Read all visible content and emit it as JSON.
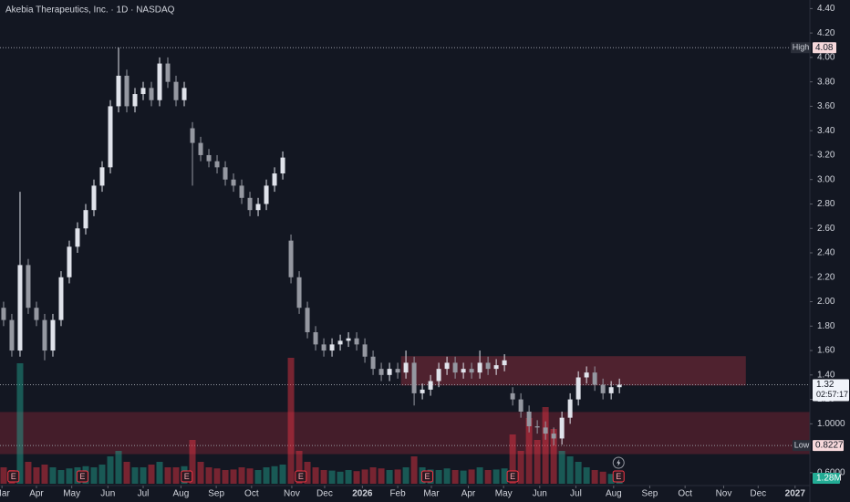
{
  "chart_data": {
    "type": "candlestick",
    "title": "Akebia Therapeutics, Inc. · 1D · NASDAQ",
    "xlim": [
      -0.44,
      98.2
    ],
    "ylim": [
      0.36,
      4.47
    ],
    "xticks": [
      {
        "value": -0.2,
        "label": "Mar"
      },
      {
        "value": 4,
        "label": "Apr"
      },
      {
        "value": 8.3,
        "label": "May"
      },
      {
        "value": 12.7,
        "label": "Jun"
      },
      {
        "value": 17,
        "label": "Jul"
      },
      {
        "value": 21.6,
        "label": "Aug"
      },
      {
        "value": 25.9,
        "label": "Sep"
      },
      {
        "value": 30.2,
        "label": "Oct"
      },
      {
        "value": 35.1,
        "label": "Nov"
      },
      {
        "value": 39.1,
        "label": "Dec"
      },
      {
        "value": 43.7,
        "label": "2026",
        "bold": true
      },
      {
        "value": 48,
        "label": "Feb"
      },
      {
        "value": 52.1,
        "label": "Mar"
      },
      {
        "value": 56.6,
        "label": "Apr"
      },
      {
        "value": 60.9,
        "label": "May"
      },
      {
        "value": 65.3,
        "label": "Jun"
      },
      {
        "value": 69.7,
        "label": "Jul"
      },
      {
        "value": 74.3,
        "label": "Aug"
      },
      {
        "value": 78.7,
        "label": "Sep"
      },
      {
        "value": 83,
        "label": "Oct"
      },
      {
        "value": 87.7,
        "label": "Nov"
      },
      {
        "value": 91.9,
        "label": "Dec"
      },
      {
        "value": 96.4,
        "label": "2027",
        "bold": true
      }
    ],
    "yticks": [
      {
        "value": 4.4,
        "label": "4.40"
      },
      {
        "value": 4.2,
        "label": "4.20"
      },
      {
        "value": 4,
        "label": "4.00"
      },
      {
        "value": 3.8,
        "label": "3.80"
      },
      {
        "value": 3.6,
        "label": "3.60"
      },
      {
        "value": 3.4,
        "label": "3.40"
      },
      {
        "value": 3.2,
        "label": "3.20"
      },
      {
        "value": 3,
        "label": "3.00"
      },
      {
        "value": 2.8,
        "label": "2.80"
      },
      {
        "value": 2.6,
        "label": "2.60"
      },
      {
        "value": 2.4,
        "label": "2.40"
      },
      {
        "value": 2.2,
        "label": "2.20"
      },
      {
        "value": 2,
        "label": "2.00"
      },
      {
        "value": 1.8,
        "label": "1.80"
      },
      {
        "value": 1.6,
        "label": "1.60"
      },
      {
        "value": 1.4,
        "label": "1.40"
      },
      {
        "value": 1.2,
        "label": "1.20"
      },
      {
        "value": 1,
        "label": "1.0000"
      },
      {
        "value": 0.6,
        "label": "0.6000"
      }
    ],
    "open": [
      1.95,
      1.85,
      1.6,
      2.3,
      1.95,
      1.85,
      1.6,
      1.85,
      2.2,
      2.45,
      2.6,
      2.75,
      2.95,
      3.1,
      3.6,
      3.85,
      3.6,
      3.7,
      3.75,
      3.65,
      3.95,
      3.8,
      3.65,
      3.42,
      3.3,
      3.2,
      3.15,
      3.1,
      3.0,
      2.95,
      2.85,
      2.75,
      2.8,
      2.95,
      3.05,
      2.5,
      2.2,
      1.95,
      1.75,
      1.65,
      1.6,
      1.65,
      1.68,
      1.7,
      1.65,
      1.55,
      1.45,
      1.4,
      1.45,
      1.42,
      1.5,
      1.25,
      1.28,
      1.35,
      1.45,
      1.5,
      1.42,
      1.45,
      1.42,
      1.5,
      1.45,
      1.48,
      1.25,
      1.2,
      1.1,
      0.98,
      0.97,
      0.92,
      0.88,
      1.05,
      1.2,
      1.38,
      1.42,
      1.32,
      1.25,
      1.3
    ],
    "high": [
      2.0,
      1.9,
      2.9,
      2.35,
      2.0,
      1.9,
      1.9,
      2.25,
      2.5,
      2.65,
      2.8,
      3.0,
      3.15,
      3.65,
      4.08,
      3.9,
      3.75,
      3.8,
      3.8,
      4.0,
      4.0,
      3.85,
      3.8,
      3.47,
      3.35,
      3.25,
      3.2,
      3.15,
      3.05,
      3.0,
      2.9,
      2.85,
      3.0,
      3.1,
      3.23,
      2.55,
      2.25,
      2.0,
      1.8,
      1.7,
      1.7,
      1.73,
      1.75,
      1.75,
      1.7,
      1.6,
      1.5,
      1.5,
      1.5,
      1.6,
      1.55,
      1.33,
      1.4,
      1.5,
      1.55,
      1.55,
      1.5,
      1.5,
      1.6,
      1.55,
      1.53,
      1.57,
      1.3,
      1.25,
      1.15,
      1.03,
      1.02,
      0.97,
      1.1,
      1.25,
      1.43,
      1.47,
      1.47,
      1.37,
      1.35,
      1.37
    ],
    "low": [
      1.8,
      1.55,
      1.55,
      1.9,
      1.8,
      1.52,
      1.55,
      1.8,
      2.15,
      2.4,
      2.55,
      2.7,
      2.9,
      3.05,
      3.55,
      3.55,
      3.55,
      3.65,
      3.6,
      3.6,
      3.75,
      3.6,
      3.6,
      2.95,
      3.15,
      3.1,
      3.05,
      2.95,
      2.9,
      2.8,
      2.7,
      2.7,
      2.75,
      2.9,
      3.0,
      2.15,
      1.9,
      1.7,
      1.6,
      1.55,
      1.55,
      1.6,
      1.63,
      1.6,
      1.5,
      1.4,
      1.35,
      1.35,
      1.37,
      1.37,
      1.15,
      1.2,
      1.23,
      1.3,
      1.4,
      1.37,
      1.37,
      1.37,
      1.37,
      1.4,
      1.4,
      1.43,
      1.15,
      1.05,
      0.93,
      0.92,
      0.87,
      0.8227,
      0.83,
      1.0,
      1.15,
      1.33,
      1.27,
      1.2,
      1.2,
      1.25
    ],
    "close": [
      1.85,
      1.6,
      2.3,
      1.95,
      1.85,
      1.6,
      1.85,
      2.2,
      2.45,
      2.6,
      2.75,
      2.95,
      3.1,
      3.6,
      3.85,
      3.6,
      3.7,
      3.75,
      3.65,
      3.95,
      3.8,
      3.65,
      3.75,
      3.3,
      3.2,
      3.15,
      3.1,
      3.0,
      2.95,
      2.85,
      2.75,
      2.8,
      2.95,
      3.05,
      3.18,
      2.2,
      1.95,
      1.75,
      1.65,
      1.6,
      1.65,
      1.68,
      1.7,
      1.65,
      1.55,
      1.45,
      1.4,
      1.45,
      1.42,
      1.5,
      1.25,
      1.28,
      1.35,
      1.45,
      1.5,
      1.42,
      1.45,
      1.42,
      1.5,
      1.45,
      1.48,
      1.52,
      1.2,
      1.1,
      0.98,
      0.97,
      0.92,
      0.88,
      1.05,
      1.2,
      1.38,
      1.42,
      1.32,
      1.25,
      1.3,
      1.32
    ],
    "volume": [
      3,
      2.5,
      22,
      4,
      3,
      3.5,
      3,
      2.5,
      2.8,
      3,
      3.2,
      3,
      3.5,
      5,
      6,
      4,
      3,
      3,
      3.5,
      4,
      3,
      3,
      3.2,
      8,
      4,
      3,
      2.8,
      2.5,
      2.6,
      3,
      2.8,
      2.5,
      3,
      3.2,
      3.5,
      23,
      6,
      4,
      3,
      2.5,
      2.4,
      2.2,
      2.5,
      2.3,
      2.6,
      3,
      2.8,
      2.5,
      2.6,
      3,
      5,
      3,
      2.6,
      2.5,
      2.8,
      2.5,
      2.4,
      2.6,
      3,
      2.5,
      2.6,
      2.8,
      9,
      6,
      12,
      8,
      14,
      10,
      6,
      5,
      4,
      3,
      2.5,
      2.2,
      1.8,
      1.28
    ],
    "volume_label": "1.28M",
    "up_color": "#e0e3eb",
    "down_color": "#9598a1",
    "high_marker": {
      "label": "High",
      "value": 4.08
    },
    "low_marker": {
      "label": "Low",
      "value": 0.8227
    },
    "last": {
      "value": 1.32,
      "countdown": "02:57:17"
    },
    "zones": [
      {
        "x": [
          48.4,
          90.4
        ],
        "y": [
          1.314,
          1.554
        ],
        "color": "#5a2531"
      },
      {
        "x": [
          -0.44,
          98.2
        ],
        "y": [
          0.752,
          1.097
        ],
        "color": "#4e1f2b"
      }
    ],
    "events": [
      {
        "x": 1.2,
        "label": "E"
      },
      {
        "x": 9.6,
        "label": "E"
      },
      {
        "x": 22.3,
        "label": "E"
      },
      {
        "x": 36.2,
        "label": "E"
      },
      {
        "x": 51.6,
        "label": "E"
      },
      {
        "x": 62,
        "label": "E"
      },
      {
        "x": 74.9,
        "label": "E"
      }
    ]
  }
}
